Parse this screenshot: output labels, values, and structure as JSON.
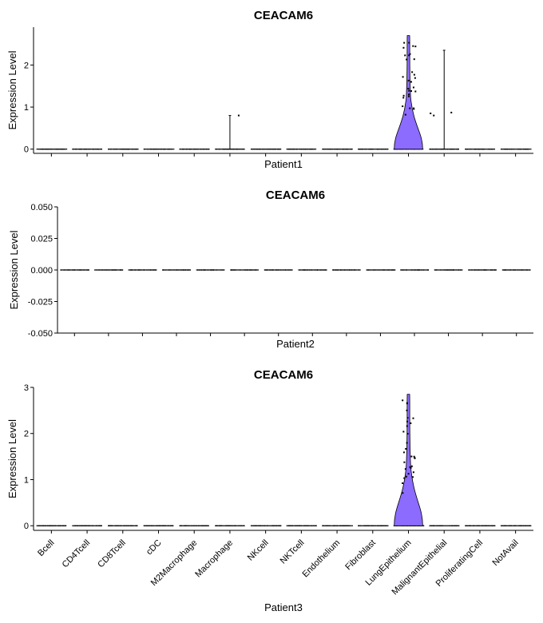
{
  "chart_data": [
    {
      "type": "violin",
      "title": "CEACAM6",
      "xlabel": "Patient1",
      "ylabel": "Expression Level",
      "ylim": [
        -0.1,
        2.9
      ],
      "yticks": [
        0,
        1,
        2
      ],
      "ytick_labels": [
        "0",
        "1",
        "2"
      ],
      "categories": [
        "Bcell",
        "CD4Tcell",
        "CD8Tcell",
        "cDC",
        "M2Macrophage",
        "Macrophage",
        "NKcell",
        "NKTcell",
        "Endothelium",
        "Fibroblast",
        "LungEpithelium",
        "MalignantEpithelial",
        "ProliferatingCell",
        "NotAvail"
      ],
      "max_values": [
        0,
        0,
        0,
        0,
        0,
        0.8,
        0,
        0,
        0,
        0,
        2.7,
        2.35,
        0,
        0
      ],
      "fill_color": "#8c6bff",
      "show_x_tick_labels": false
    },
    {
      "type": "violin",
      "title": "CEACAM6",
      "xlabel": "Patient2",
      "ylabel": "Expression Level",
      "ylim": [
        -0.05,
        0.05
      ],
      "yticks": [
        -0.05,
        -0.025,
        0,
        0.025,
        0.05
      ],
      "ytick_labels": [
        "-0.050",
        "-0.025",
        "0.000",
        "0.025",
        "0.050"
      ],
      "categories": [
        "Bcell",
        "CD4Tcell",
        "CD8Tcell",
        "cDC",
        "M2Macrophage",
        "Macrophage",
        "NKcell",
        "NKTcell",
        "Endothelium",
        "Fibroblast",
        "LungEpithelium",
        "MalignantEpithelial",
        "ProliferatingCell",
        "NotAvail"
      ],
      "max_values": [
        0,
        0,
        0,
        0,
        0,
        0,
        0,
        0,
        0,
        0,
        0,
        0,
        0,
        0
      ],
      "fill_color": "#8c6bff",
      "show_x_tick_labels": false
    },
    {
      "type": "violin",
      "title": "CEACAM6",
      "xlabel": "Patient3",
      "ylabel": "Expression Level",
      "ylim": [
        -0.1,
        3.0
      ],
      "yticks": [
        0,
        1,
        2,
        3
      ],
      "ytick_labels": [
        "0",
        "1",
        "2",
        "3"
      ],
      "categories": [
        "Bcell",
        "CD4Tcell",
        "CD8Tcell",
        "cDC",
        "M2Macrophage",
        "Macrophage",
        "NKcell",
        "NKTcell",
        "Endothelium",
        "Fibroblast",
        "LungEpithelium",
        "MalignantEpithelial",
        "ProliferatingCell",
        "NotAvail"
      ],
      "max_values": [
        0,
        0,
        0,
        0,
        0,
        0,
        0,
        0,
        0,
        0,
        2.85,
        0,
        0,
        0
      ],
      "fill_color": "#8c6bff",
      "show_x_tick_labels": true
    }
  ]
}
